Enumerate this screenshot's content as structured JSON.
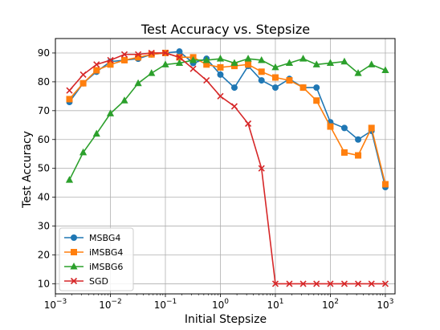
{
  "chart_data": {
    "type": "line",
    "title": "Test Accuracy vs. Stepsize",
    "xlabel": "Initial Stepsize",
    "ylabel": "Test Accuracy",
    "xscale": "log",
    "xlim": [
      0.001,
      1500
    ],
    "ylim": [
      6.5,
      95
    ],
    "grid": true,
    "legend_position": "lower-left",
    "x": [
      0.0018,
      0.0032,
      0.0056,
      0.01,
      0.018,
      0.032,
      0.056,
      0.1,
      0.18,
      0.32,
      0.56,
      1,
      1.8,
      3.2,
      5.6,
      10,
      18,
      32,
      56,
      100,
      180,
      320,
      560,
      1000
    ],
    "x_ticks": [
      {
        "value": 0.001,
        "base": "10",
        "exp": "−3"
      },
      {
        "value": 0.01,
        "base": "10",
        "exp": "−2"
      },
      {
        "value": 0.1,
        "base": "10",
        "exp": "−1"
      },
      {
        "value": 1,
        "base": "10",
        "exp": "0"
      },
      {
        "value": 10,
        "base": "10",
        "exp": "1"
      },
      {
        "value": 100,
        "base": "10",
        "exp": "2"
      },
      {
        "value": 1000,
        "base": "10",
        "exp": "3"
      }
    ],
    "y_ticks": [
      "10",
      "20",
      "30",
      "40",
      "50",
      "60",
      "70",
      "80",
      "90"
    ],
    "series": [
      {
        "name": "MSBG4",
        "color": "#1f77b4",
        "marker": "circle",
        "values": [
          73,
          79.5,
          83.5,
          87,
          87.5,
          88,
          89.5,
          90,
          90.5,
          86.5,
          88,
          82.5,
          78,
          85.5,
          80.5,
          78,
          81,
          78,
          78,
          66,
          64,
          60,
          63,
          43.5
        ]
      },
      {
        "name": "iMSBG4",
        "color": "#ff7f0e",
        "marker": "square",
        "values": [
          74,
          79.5,
          84,
          86,
          87.5,
          88.5,
          89.5,
          90,
          88.5,
          88.5,
          86,
          85,
          85.5,
          86,
          83.5,
          81.5,
          80.5,
          78,
          73.5,
          64.5,
          55.5,
          54.5,
          64,
          44.5
        ]
      },
      {
        "name": "iMSBG6",
        "color": "#2ca02c",
        "marker": "triangle",
        "values": [
          46,
          55.5,
          62,
          69,
          73.5,
          79.5,
          83,
          86,
          86.5,
          87.5,
          87.5,
          88,
          86.5,
          88,
          87.5,
          85,
          86.5,
          88,
          86,
          86.5,
          87,
          83,
          86,
          84
        ]
      },
      {
        "name": "SGD",
        "color": "#d62728",
        "marker": "x",
        "values": [
          77,
          82.5,
          86,
          87.5,
          89.5,
          89.5,
          90,
          90,
          88.5,
          84.5,
          80.5,
          75,
          71.5,
          65.5,
          50,
          10,
          10,
          10,
          10,
          10,
          10,
          10,
          10,
          10
        ]
      }
    ]
  }
}
